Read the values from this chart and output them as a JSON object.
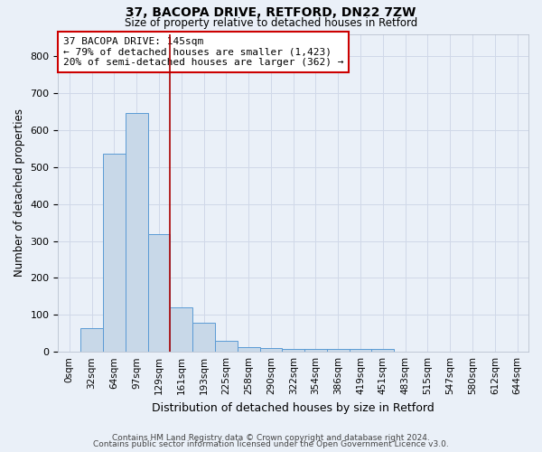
{
  "title1": "37, BACOPA DRIVE, RETFORD, DN22 7ZW",
  "title2": "Size of property relative to detached houses in Retford",
  "xlabel": "Distribution of detached houses by size in Retford",
  "ylabel": "Number of detached properties",
  "bin_labels": [
    "0sqm",
    "32sqm",
    "64sqm",
    "97sqm",
    "129sqm",
    "161sqm",
    "193sqm",
    "225sqm",
    "258sqm",
    "290sqm",
    "322sqm",
    "354sqm",
    "386sqm",
    "419sqm",
    "451sqm",
    "483sqm",
    "515sqm",
    "547sqm",
    "580sqm",
    "612sqm",
    "644sqm"
  ],
  "bar_heights": [
    0,
    65,
    535,
    645,
    318,
    120,
    78,
    30,
    13,
    10,
    8,
    7,
    7,
    7,
    8,
    0,
    0,
    0,
    0,
    0,
    0
  ],
  "bar_color": "#c8d8e8",
  "bar_edge_color": "#5b9bd5",
  "grid_color": "#d0d8e8",
  "bg_color": "#eaf0f8",
  "vline_color": "#aa0000",
  "annotation_text": "37 BACOPA DRIVE: 145sqm\n← 79% of detached houses are smaller (1,423)\n20% of semi-detached houses are larger (362) →",
  "annotation_box_color": "#ffffff",
  "annotation_box_edge": "#cc0000",
  "footer1": "Contains HM Land Registry data © Crown copyright and database right 2024.",
  "footer2": "Contains public sector information licensed under the Open Government Licence v3.0.",
  "ylim": [
    0,
    860
  ],
  "yticks": [
    0,
    100,
    200,
    300,
    400,
    500,
    600,
    700,
    800
  ]
}
